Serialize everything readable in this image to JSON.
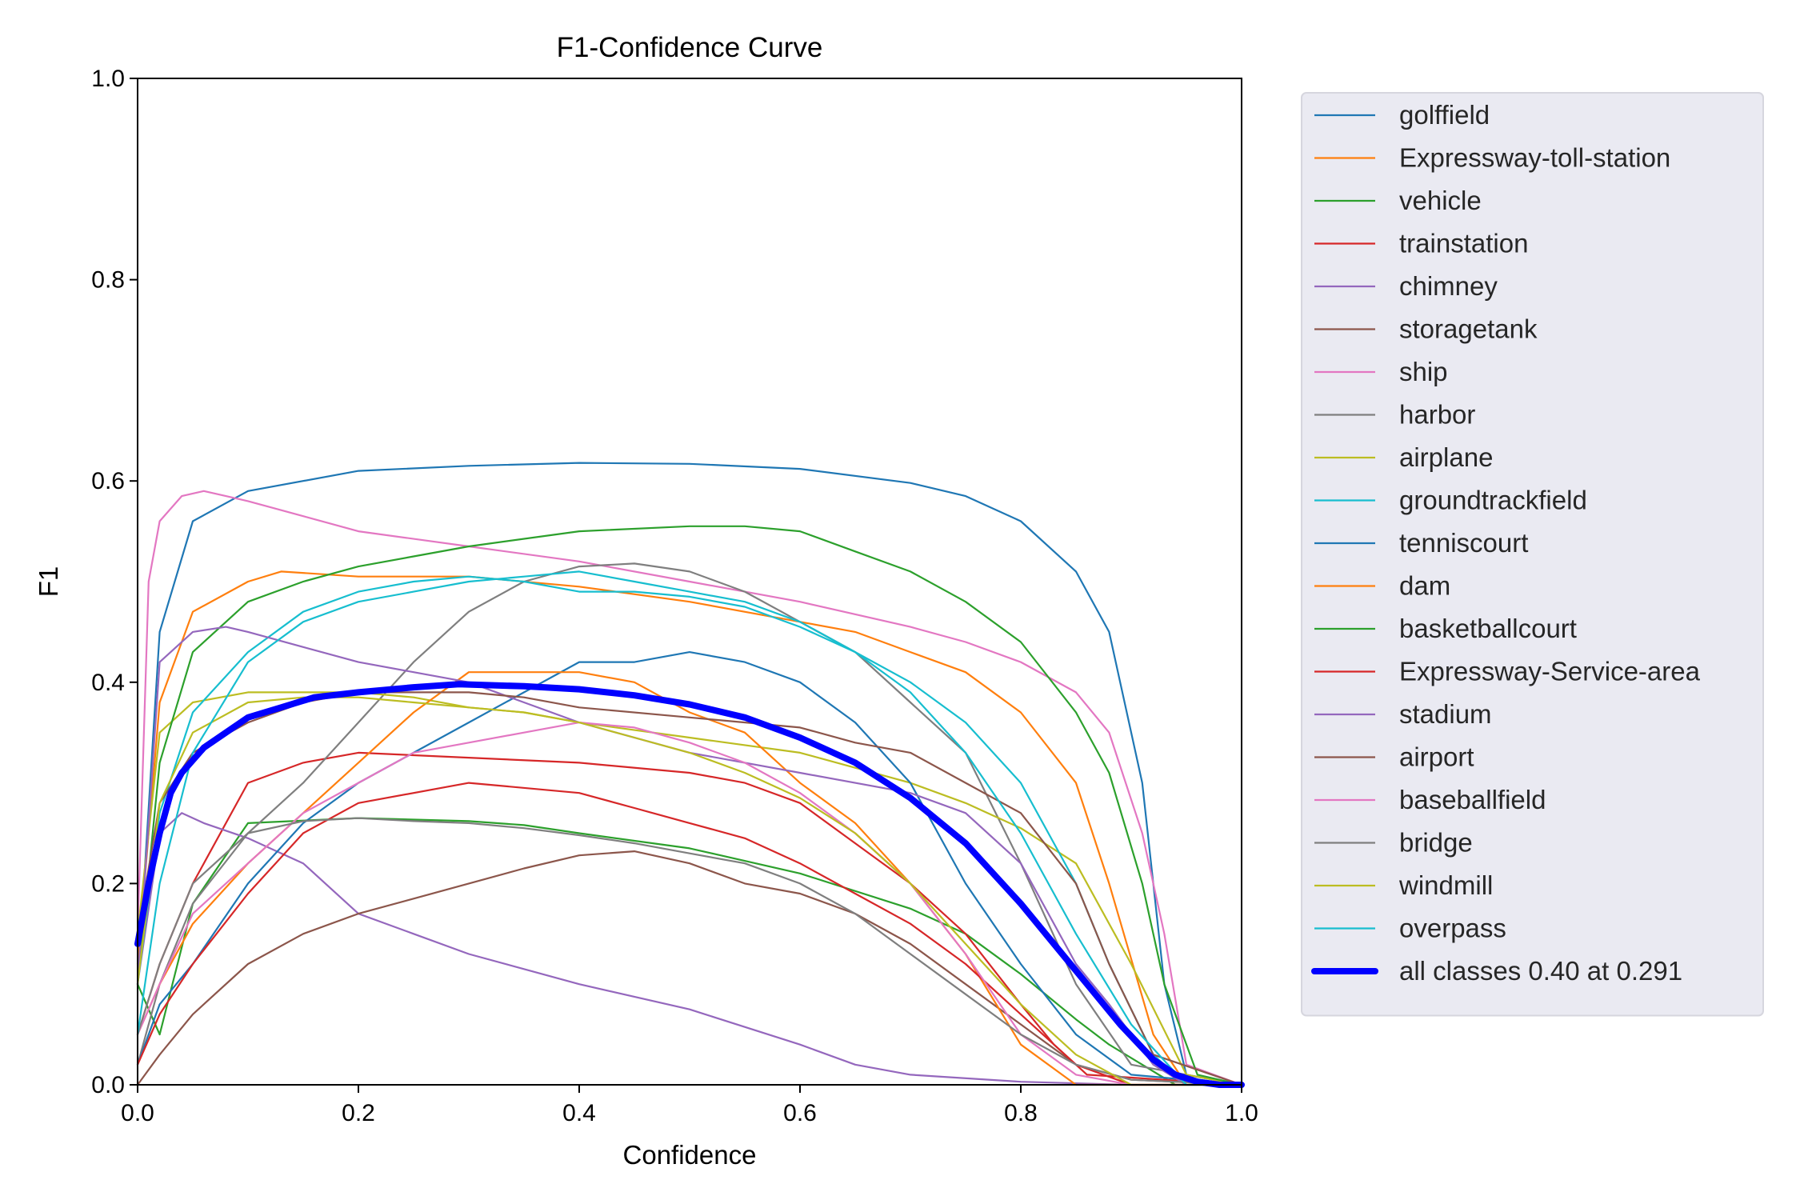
{
  "chart_data": {
    "type": "line",
    "title": "F1-Confidence Curve",
    "xlabel": "Confidence",
    "ylabel": "F1",
    "xlim": [
      0,
      1
    ],
    "ylim": [
      0,
      1
    ],
    "xticks": [
      "0.0",
      "0.2",
      "0.4",
      "0.6",
      "0.8",
      "1.0"
    ],
    "yticks": [
      "0.0",
      "0.2",
      "0.4",
      "0.6",
      "0.8",
      "1.0"
    ],
    "grid": false,
    "legend_position": "outside-right",
    "series": [
      {
        "name": "golffield",
        "color": "#1f77b4",
        "x": [
          0.0,
          0.02,
          0.05,
          0.1,
          0.2,
          0.3,
          0.4,
          0.5,
          0.6,
          0.7,
          0.75,
          0.8,
          0.85,
          0.88,
          0.91,
          0.93,
          0.95,
          1.0
        ],
        "y": [
          0.1,
          0.45,
          0.56,
          0.59,
          0.61,
          0.615,
          0.618,
          0.617,
          0.612,
          0.598,
          0.585,
          0.56,
          0.51,
          0.45,
          0.3,
          0.1,
          0.01,
          0.0
        ]
      },
      {
        "name": "Expressway-toll-station",
        "color": "#ff7f0e",
        "x": [
          0.0,
          0.02,
          0.05,
          0.1,
          0.13,
          0.2,
          0.3,
          0.4,
          0.5,
          0.6,
          0.65,
          0.7,
          0.75,
          0.8,
          0.85,
          0.88,
          0.92,
          0.95,
          1.0
        ],
        "y": [
          0.12,
          0.38,
          0.47,
          0.5,
          0.51,
          0.505,
          0.505,
          0.495,
          0.48,
          0.46,
          0.45,
          0.43,
          0.41,
          0.37,
          0.3,
          0.2,
          0.05,
          0.0,
          0.0
        ]
      },
      {
        "name": "vehicle",
        "color": "#2ca02c",
        "x": [
          0.0,
          0.02,
          0.05,
          0.1,
          0.2,
          0.3,
          0.35,
          0.4,
          0.5,
          0.6,
          0.7,
          0.75,
          0.8,
          0.85,
          0.88,
          0.91,
          0.94,
          1.0
        ],
        "y": [
          0.1,
          0.05,
          0.18,
          0.26,
          0.265,
          0.262,
          0.258,
          0.25,
          0.235,
          0.21,
          0.175,
          0.15,
          0.11,
          0.065,
          0.04,
          0.02,
          0.0,
          0.0
        ]
      },
      {
        "name": "trainstation",
        "color": "#d62728",
        "x": [
          0.0,
          0.02,
          0.05,
          0.1,
          0.15,
          0.2,
          0.3,
          0.4,
          0.5,
          0.55,
          0.6,
          0.65,
          0.7,
          0.75,
          0.8,
          0.83,
          0.86,
          1.0
        ],
        "y": [
          0.05,
          0.12,
          0.2,
          0.3,
          0.32,
          0.33,
          0.325,
          0.32,
          0.31,
          0.3,
          0.28,
          0.24,
          0.2,
          0.15,
          0.08,
          0.04,
          0.01,
          0.0
        ]
      },
      {
        "name": "chimney",
        "color": "#9467bd",
        "x": [
          0.0,
          0.02,
          0.04,
          0.06,
          0.1,
          0.15,
          0.2,
          0.25,
          0.3,
          0.4,
          0.5,
          0.6,
          0.65,
          0.7,
          0.8,
          0.9,
          1.0
        ],
        "y": [
          0.1,
          0.25,
          0.27,
          0.26,
          0.245,
          0.22,
          0.17,
          0.15,
          0.13,
          0.1,
          0.075,
          0.04,
          0.02,
          0.01,
          0.003,
          0.0,
          0.0
        ]
      },
      {
        "name": "storagetank",
        "color": "#8c564b",
        "x": [
          0.0,
          0.02,
          0.05,
          0.1,
          0.15,
          0.2,
          0.25,
          0.3,
          0.35,
          0.4,
          0.45,
          0.5,
          0.55,
          0.6,
          0.65,
          0.7,
          0.75,
          0.8,
          0.85,
          0.9,
          1.0
        ],
        "y": [
          0.0,
          0.03,
          0.07,
          0.12,
          0.15,
          0.17,
          0.185,
          0.2,
          0.215,
          0.228,
          0.232,
          0.22,
          0.2,
          0.19,
          0.17,
          0.14,
          0.1,
          0.06,
          0.02,
          0.005,
          0.0
        ]
      },
      {
        "name": "ship",
        "color": "#e377c2",
        "x": [
          0.0,
          0.01,
          0.02,
          0.04,
          0.06,
          0.08,
          0.1,
          0.15,
          0.2,
          0.3,
          0.4,
          0.5,
          0.6,
          0.7,
          0.75,
          0.8,
          0.85,
          0.88,
          0.91,
          0.93,
          0.95,
          1.0
        ],
        "y": [
          0.15,
          0.5,
          0.56,
          0.585,
          0.59,
          0.585,
          0.58,
          0.565,
          0.55,
          0.535,
          0.52,
          0.5,
          0.48,
          0.455,
          0.44,
          0.42,
          0.39,
          0.35,
          0.25,
          0.15,
          0.02,
          0.0
        ]
      },
      {
        "name": "harbor",
        "color": "#7f7f7f",
        "x": [
          0.0,
          0.02,
          0.05,
          0.1,
          0.15,
          0.2,
          0.25,
          0.3,
          0.35,
          0.4,
          0.45,
          0.5,
          0.55,
          0.6,
          0.65,
          0.7,
          0.75,
          0.8,
          0.85,
          0.9,
          1.0
        ],
        "y": [
          0.02,
          0.1,
          0.18,
          0.25,
          0.3,
          0.36,
          0.42,
          0.47,
          0.5,
          0.515,
          0.518,
          0.51,
          0.49,
          0.46,
          0.43,
          0.38,
          0.33,
          0.22,
          0.1,
          0.02,
          0.0
        ]
      },
      {
        "name": "airplane",
        "color": "#bcbd22",
        "x": [
          0.0,
          0.02,
          0.05,
          0.1,
          0.15,
          0.2,
          0.25,
          0.3,
          0.35,
          0.4,
          0.5,
          0.6,
          0.7,
          0.75,
          0.8,
          0.85,
          0.9,
          0.95,
          1.0
        ],
        "y": [
          0.15,
          0.35,
          0.38,
          0.39,
          0.39,
          0.39,
          0.385,
          0.375,
          0.37,
          0.36,
          0.345,
          0.33,
          0.3,
          0.28,
          0.255,
          0.22,
          0.12,
          0.01,
          0.0
        ]
      },
      {
        "name": "groundtrackfield",
        "color": "#17becf",
        "x": [
          0.0,
          0.02,
          0.05,
          0.1,
          0.15,
          0.2,
          0.25,
          0.3,
          0.35,
          0.4,
          0.45,
          0.5,
          0.55,
          0.6,
          0.65,
          0.7,
          0.75,
          0.8,
          0.85,
          0.88,
          0.92,
          0.95,
          1.0
        ],
        "y": [
          0.1,
          0.27,
          0.37,
          0.43,
          0.47,
          0.49,
          0.5,
          0.505,
          0.5,
          0.49,
          0.49,
          0.485,
          0.475,
          0.455,
          0.43,
          0.4,
          0.36,
          0.3,
          0.2,
          0.12,
          0.03,
          0.0,
          0.0
        ]
      },
      {
        "name": "tenniscourt",
        "color": "#1f77b4",
        "x": [
          0.0,
          0.02,
          0.05,
          0.1,
          0.15,
          0.2,
          0.25,
          0.3,
          0.35,
          0.4,
          0.45,
          0.5,
          0.55,
          0.6,
          0.65,
          0.7,
          0.75,
          0.8,
          0.85,
          0.9,
          1.0
        ],
        "y": [
          0.02,
          0.08,
          0.12,
          0.2,
          0.26,
          0.3,
          0.33,
          0.36,
          0.39,
          0.42,
          0.42,
          0.43,
          0.42,
          0.4,
          0.36,
          0.3,
          0.2,
          0.12,
          0.05,
          0.01,
          0.0
        ]
      },
      {
        "name": "dam",
        "color": "#ff7f0e",
        "x": [
          0.0,
          0.02,
          0.05,
          0.1,
          0.15,
          0.2,
          0.25,
          0.3,
          0.35,
          0.4,
          0.45,
          0.5,
          0.55,
          0.6,
          0.65,
          0.7,
          0.75,
          0.8,
          0.85,
          1.0
        ],
        "y": [
          0.05,
          0.1,
          0.16,
          0.22,
          0.27,
          0.32,
          0.37,
          0.41,
          0.41,
          0.41,
          0.4,
          0.37,
          0.35,
          0.3,
          0.26,
          0.2,
          0.13,
          0.04,
          0.0,
          0.0
        ]
      },
      {
        "name": "basketballcourt",
        "color": "#2ca02c",
        "x": [
          0.0,
          0.02,
          0.05,
          0.1,
          0.15,
          0.2,
          0.25,
          0.3,
          0.4,
          0.5,
          0.55,
          0.6,
          0.65,
          0.7,
          0.75,
          0.8,
          0.85,
          0.88,
          0.91,
          0.93,
          0.96,
          1.0
        ],
        "y": [
          0.1,
          0.32,
          0.43,
          0.48,
          0.5,
          0.515,
          0.525,
          0.535,
          0.55,
          0.555,
          0.555,
          0.55,
          0.53,
          0.51,
          0.48,
          0.44,
          0.37,
          0.31,
          0.2,
          0.1,
          0.01,
          0.0
        ]
      },
      {
        "name": "Expressway-Service-area",
        "color": "#d62728",
        "x": [
          0.0,
          0.02,
          0.05,
          0.1,
          0.15,
          0.2,
          0.3,
          0.4,
          0.45,
          0.5,
          0.55,
          0.6,
          0.65,
          0.7,
          0.75,
          0.8,
          0.85,
          0.9,
          1.0
        ],
        "y": [
          0.02,
          0.07,
          0.12,
          0.19,
          0.25,
          0.28,
          0.3,
          0.29,
          0.275,
          0.26,
          0.245,
          0.22,
          0.19,
          0.16,
          0.12,
          0.07,
          0.02,
          0.0,
          0.0
        ]
      },
      {
        "name": "stadium",
        "color": "#9467bd",
        "x": [
          0.0,
          0.02,
          0.05,
          0.08,
          0.1,
          0.15,
          0.2,
          0.25,
          0.3,
          0.35,
          0.4,
          0.5,
          0.6,
          0.7,
          0.75,
          0.8,
          0.85,
          0.88,
          0.92,
          0.95,
          1.0
        ],
        "y": [
          0.1,
          0.42,
          0.45,
          0.455,
          0.45,
          0.435,
          0.42,
          0.41,
          0.4,
          0.38,
          0.36,
          0.33,
          0.31,
          0.29,
          0.27,
          0.22,
          0.12,
          0.08,
          0.02,
          0.0,
          0.0
        ]
      },
      {
        "name": "airport",
        "color": "#8c564b",
        "x": [
          0.0,
          0.02,
          0.05,
          0.1,
          0.15,
          0.2,
          0.25,
          0.3,
          0.35,
          0.4,
          0.5,
          0.6,
          0.65,
          0.7,
          0.75,
          0.8,
          0.85,
          0.88,
          0.92,
          1.0
        ],
        "y": [
          0.15,
          0.28,
          0.33,
          0.36,
          0.38,
          0.39,
          0.39,
          0.39,
          0.385,
          0.375,
          0.365,
          0.355,
          0.34,
          0.33,
          0.3,
          0.27,
          0.2,
          0.12,
          0.03,
          0.0
        ]
      },
      {
        "name": "baseballfield",
        "color": "#e377c2",
        "x": [
          0.0,
          0.02,
          0.05,
          0.1,
          0.15,
          0.2,
          0.25,
          0.3,
          0.35,
          0.4,
          0.45,
          0.5,
          0.55,
          0.6,
          0.65,
          0.7,
          0.75,
          0.8,
          0.85,
          0.9,
          1.0
        ],
        "y": [
          0.05,
          0.1,
          0.17,
          0.22,
          0.27,
          0.3,
          0.33,
          0.34,
          0.35,
          0.36,
          0.355,
          0.34,
          0.32,
          0.29,
          0.25,
          0.2,
          0.13,
          0.05,
          0.01,
          0.0,
          0.0
        ]
      },
      {
        "name": "bridge",
        "color": "#7f7f7f",
        "x": [
          0.0,
          0.02,
          0.05,
          0.1,
          0.15,
          0.2,
          0.25,
          0.3,
          0.35,
          0.4,
          0.45,
          0.5,
          0.55,
          0.6,
          0.65,
          0.7,
          0.75,
          0.8,
          0.85,
          0.9,
          1.0
        ],
        "y": [
          0.05,
          0.12,
          0.2,
          0.25,
          0.262,
          0.265,
          0.262,
          0.26,
          0.255,
          0.248,
          0.24,
          0.23,
          0.22,
          0.2,
          0.17,
          0.13,
          0.09,
          0.05,
          0.02,
          0.005,
          0.0
        ]
      },
      {
        "name": "windmill",
        "color": "#bcbd22",
        "x": [
          0.0,
          0.02,
          0.05,
          0.1,
          0.15,
          0.2,
          0.25,
          0.3,
          0.35,
          0.4,
          0.45,
          0.5,
          0.55,
          0.6,
          0.65,
          0.7,
          0.75,
          0.8,
          0.85,
          0.9,
          1.0
        ],
        "y": [
          0.1,
          0.28,
          0.35,
          0.38,
          0.385,
          0.385,
          0.38,
          0.375,
          0.37,
          0.36,
          0.345,
          0.33,
          0.31,
          0.285,
          0.25,
          0.2,
          0.14,
          0.08,
          0.03,
          0.0,
          0.0
        ]
      },
      {
        "name": "overpass",
        "color": "#17becf",
        "x": [
          0.0,
          0.02,
          0.05,
          0.1,
          0.15,
          0.2,
          0.25,
          0.3,
          0.35,
          0.4,
          0.45,
          0.5,
          0.55,
          0.6,
          0.65,
          0.7,
          0.75,
          0.8,
          0.85,
          0.9,
          0.95,
          1.0
        ],
        "y": [
          0.05,
          0.2,
          0.33,
          0.42,
          0.46,
          0.48,
          0.49,
          0.5,
          0.505,
          0.51,
          0.5,
          0.49,
          0.48,
          0.46,
          0.43,
          0.39,
          0.33,
          0.25,
          0.15,
          0.06,
          0.0,
          0.0
        ]
      },
      {
        "name": "all classes 0.40 at 0.291",
        "color": "#0000ff",
        "highlight": true,
        "x": [
          0.0,
          0.01,
          0.02,
          0.03,
          0.04,
          0.06,
          0.08,
          0.1,
          0.13,
          0.16,
          0.2,
          0.25,
          0.291,
          0.35,
          0.4,
          0.45,
          0.5,
          0.55,
          0.6,
          0.65,
          0.7,
          0.75,
          0.8,
          0.83,
          0.86,
          0.89,
          0.92,
          0.94,
          0.96,
          0.98,
          1.0
        ],
        "y": [
          0.14,
          0.2,
          0.25,
          0.29,
          0.31,
          0.335,
          0.35,
          0.365,
          0.375,
          0.385,
          0.39,
          0.395,
          0.398,
          0.396,
          0.393,
          0.387,
          0.378,
          0.365,
          0.345,
          0.32,
          0.285,
          0.24,
          0.18,
          0.14,
          0.1,
          0.06,
          0.025,
          0.01,
          0.003,
          0.0,
          0.0
        ]
      }
    ]
  }
}
